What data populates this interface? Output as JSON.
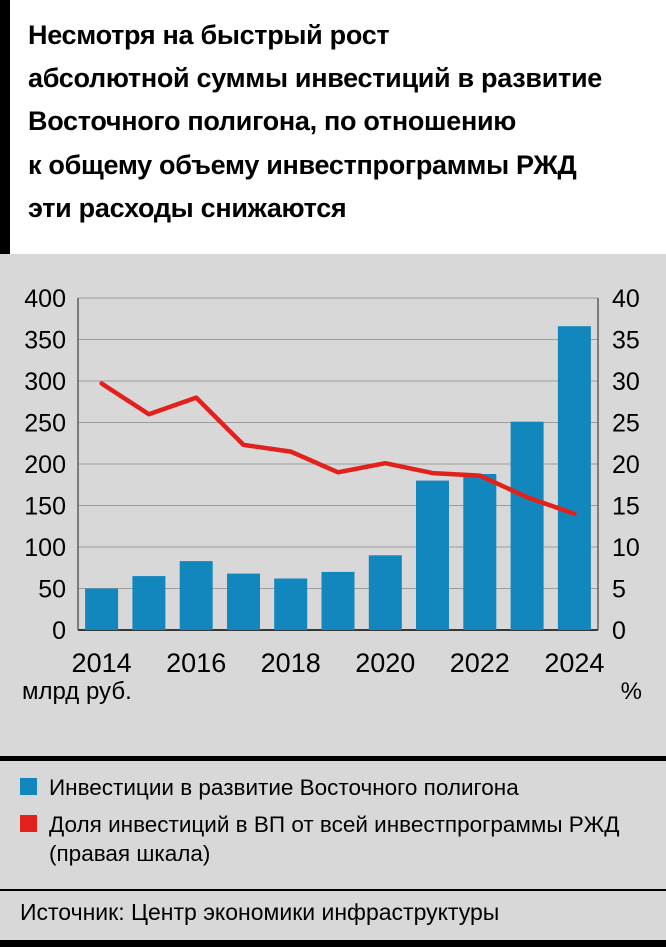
{
  "title": "Несмотря на быстрый рост\nабсолютной суммы инвестиций в развитие\nВосточного полигона, по отношению\nк общему объему инвестпрограммы РЖД\nэти расходы снижаются",
  "units": {
    "left": "млрд руб.",
    "right": "%"
  },
  "legend": {
    "items": [
      {
        "label": "Инвестиции в развитие Восточного полигона",
        "color": "#1287be"
      },
      {
        "label": "Доля инвестиций в ВП от всей инвестпрограммы РЖД\n(правая шкала)",
        "color": "#e3211c"
      }
    ]
  },
  "source": "Источник: Центр экономики инфраструктуры",
  "colors": {
    "bar": "#1287be",
    "line": "#e3211c",
    "background": "#d8d8d8",
    "title_background": "#ffffff",
    "grid": "#9c9c9c",
    "axis": "#4a4a4a"
  },
  "chart_data": {
    "type": "bar+line",
    "title": "",
    "categories": [
      2014,
      2015,
      2016,
      2017,
      2018,
      2019,
      2020,
      2021,
      2022,
      2023,
      2024
    ],
    "x_tick_labels": [
      "2014",
      "2016",
      "2018",
      "2020",
      "2022",
      "2024"
    ],
    "series": [
      {
        "name": "Инвестиции в развитие Восточного полигона",
        "type": "bar",
        "axis": "left",
        "color": "#1287be",
        "values": [
          50,
          65,
          83,
          68,
          62,
          70,
          90,
          180,
          188,
          251,
          366
        ]
      },
      {
        "name": "Доля инвестиций в ВП от всей инвестпрограммы РЖД (правая шкала)",
        "type": "line",
        "axis": "right",
        "color": "#e3211c",
        "values": [
          29.7,
          26.0,
          28.0,
          22.3,
          21.5,
          19.0,
          20.1,
          18.9,
          18.6,
          16.0,
          14.0
        ]
      }
    ],
    "left_axis": {
      "label": "млрд руб.",
      "min": 0,
      "max": 400,
      "ticks": [
        0,
        50,
        100,
        150,
        200,
        250,
        300,
        350,
        400
      ]
    },
    "right_axis": {
      "label": "%",
      "min": 0,
      "max": 40,
      "ticks": [
        0,
        5,
        10,
        15,
        20,
        25,
        30,
        35,
        40
      ]
    },
    "grid": true,
    "legend_position": "bottom"
  }
}
